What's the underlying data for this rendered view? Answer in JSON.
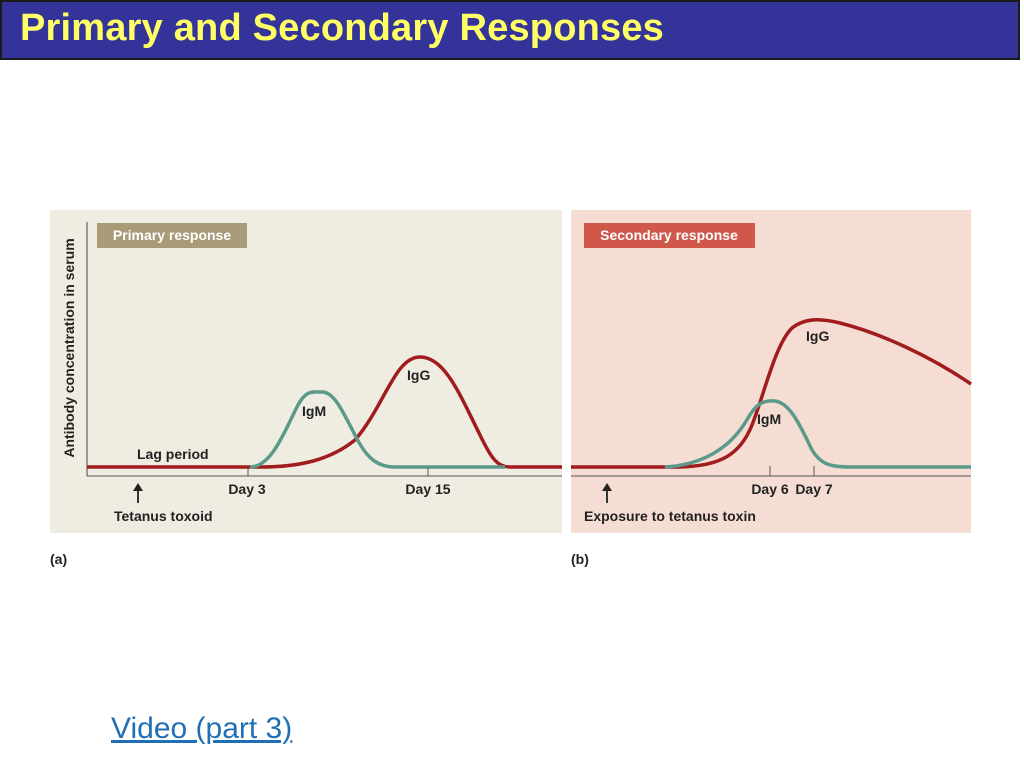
{
  "slide": {
    "title": "Primary and Secondary Responses",
    "link_label": "Video (part 3)"
  },
  "colors": {
    "title_bg": "#333399",
    "title_text": "#ffff66",
    "panel_a_bg": "#efece2",
    "panel_b_bg": "#f5ddd3",
    "badge_a": "#a89b78",
    "badge_b": "#d0584a",
    "igg_curve": "#a11c1c",
    "igm_curve": "#5b9a8b",
    "link": "#1f6fb5"
  },
  "figure": {
    "y_axis_label": "Antibody concentration in serum",
    "panel_a": {
      "badge": "Primary response",
      "caption": "(a)",
      "igm_label": "IgM",
      "igg_label": "IgG",
      "lag_label": "Lag period",
      "day_a": "Day 3",
      "day_b": "Day 15",
      "arrow_label": "Tetanus toxoid"
    },
    "panel_b": {
      "badge": "Secondary response",
      "caption": "(b)",
      "igg_label": "IgG",
      "igm_label": "IgM",
      "day_a": "Day 6",
      "day_b": "Day 7",
      "arrow_label": "Exposure to tetanus toxin"
    }
  }
}
